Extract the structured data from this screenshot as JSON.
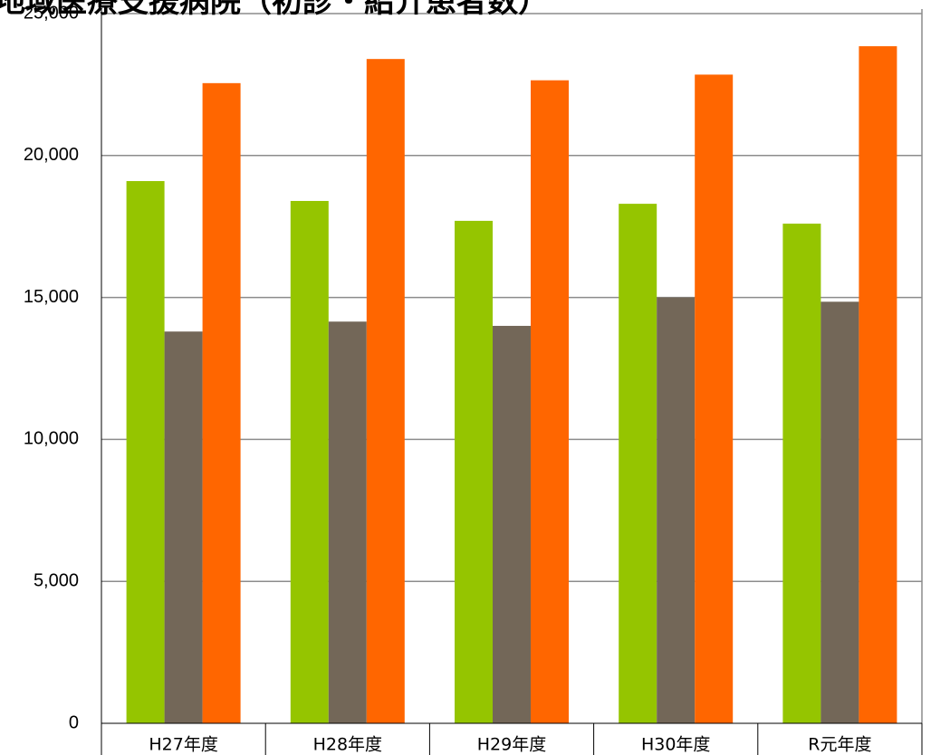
{
  "chart_data": {
    "type": "bar",
    "title": "地域医療支援病院（初診・紹介患者数）",
    "categories": [
      "H27年度",
      "H28年度",
      "H29年度",
      "H30年度",
      "R元年度"
    ],
    "series": [
      {
        "values": [
          19100,
          18400,
          17700,
          18300,
          17600
        ],
        "color": "#95c500"
      },
      {
        "values": [
          13800,
          14150,
          14000,
          15000,
          14850
        ],
        "color": "#736758"
      },
      {
        "values": [
          22550,
          23400,
          22650,
          22850,
          23850
        ],
        "color": "#ff6600"
      }
    ],
    "yticks": [
      "0",
      "5,000",
      "10,000",
      "15,000",
      "20,000",
      "25,000"
    ],
    "ylim": [
      0,
      25000
    ],
    "grid": true,
    "legend": "none"
  }
}
